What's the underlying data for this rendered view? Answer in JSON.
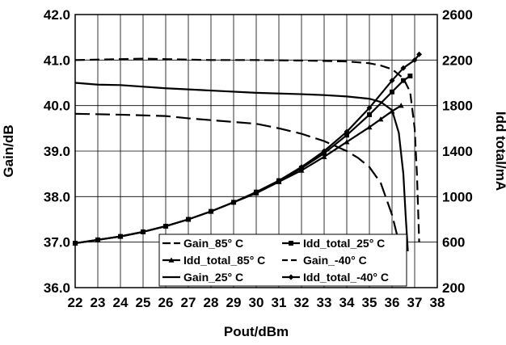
{
  "chart_data": {
    "type": "line",
    "title": "",
    "xlabel": "Pout/dBm",
    "ylabel_left": "Gain/dB",
    "ylabel_right": "Idd total/mA",
    "xlim": [
      22,
      38
    ],
    "ylim_left": [
      36.0,
      42.0
    ],
    "ylim_right": [
      200,
      2600
    ],
    "x_ticks": [
      "22",
      "23",
      "24",
      "25",
      "26",
      "27",
      "28",
      "29",
      "30",
      "31",
      "32",
      "33",
      "34",
      "35",
      "36",
      "37",
      "38"
    ],
    "y_left_ticks": [
      "36.0",
      "37.0",
      "38.0",
      "39.0",
      "40.0",
      "41.0",
      "42.0"
    ],
    "y_right_ticks": [
      "200",
      "600",
      "1000",
      "1400",
      "1800",
      "2200",
      "2600"
    ],
    "grid": true,
    "legend_position": "bottom-center",
    "legend": [
      "Gain_85° C",
      "Idd_total_25° C",
      "Idd_total_85° C",
      "Gain_-40° C",
      "Gain_25° C",
      "Idd_total_-40° C"
    ],
    "series": [
      {
        "name": "Gain_85° C",
        "axis": "left",
        "style": "long-dash",
        "x": [
          22,
          24,
          26,
          27,
          28,
          30,
          31,
          32,
          33,
          34,
          34.5,
          35,
          35.5,
          36,
          36.2,
          36.4,
          36.5
        ],
        "y": [
          39.82,
          39.8,
          39.77,
          39.72,
          39.68,
          39.6,
          39.5,
          39.38,
          39.22,
          39.0,
          38.85,
          38.65,
          38.3,
          37.6,
          37.2,
          36.9,
          36.5
        ]
      },
      {
        "name": "Gain_-40° C",
        "axis": "left",
        "style": "dash",
        "x": [
          22,
          24,
          25,
          26,
          28,
          30,
          32,
          34,
          35,
          35.5,
          36,
          36.5,
          36.8,
          37.0,
          37.1,
          37.2
        ],
        "y": [
          41.0,
          41.02,
          41.03,
          41.02,
          41.0,
          41.0,
          40.99,
          40.97,
          40.93,
          40.88,
          40.8,
          40.6,
          40.3,
          39.5,
          38.5,
          37.0
        ]
      },
      {
        "name": "Gain_25° C",
        "axis": "left",
        "style": "solid",
        "x": [
          22,
          23,
          24,
          26,
          28,
          30,
          32,
          33,
          34,
          35,
          35.5,
          36,
          36.3,
          36.5,
          36.6,
          36.7
        ],
        "y": [
          40.5,
          40.46,
          40.45,
          40.38,
          40.33,
          40.28,
          40.25,
          40.23,
          40.2,
          40.15,
          40.08,
          39.9,
          39.4,
          38.5,
          37.6,
          36.8
        ]
      },
      {
        "name": "Idd_total_85° C",
        "axis": "right",
        "marker": "triangle",
        "x": [
          22,
          23,
          24,
          25,
          26,
          27,
          28,
          29,
          30,
          31,
          32,
          33,
          34,
          35,
          35.5,
          36,
          36.4
        ],
        "y": [
          590,
          620,
          650,
          690,
          740,
          800,
          870,
          950,
          1030,
          1130,
          1230,
          1350,
          1480,
          1610,
          1680,
          1750,
          1800
        ]
      },
      {
        "name": "Idd_total_25° C",
        "axis": "right",
        "marker": "square",
        "x": [
          22,
          23,
          24,
          25,
          26,
          27,
          28,
          29,
          30,
          31,
          32,
          33,
          34,
          35,
          36,
          36.5,
          36.8
        ],
        "y": [
          590,
          620,
          650,
          690,
          740,
          800,
          870,
          950,
          1040,
          1140,
          1250,
          1380,
          1540,
          1720,
          1920,
          2020,
          2060
        ]
      },
      {
        "name": "Idd_total_-40° C",
        "axis": "right",
        "marker": "diamond",
        "x": [
          22,
          23,
          24,
          25,
          26,
          27,
          28,
          29,
          30,
          31,
          32,
          33,
          34,
          35,
          36,
          36.5,
          37.0,
          37.2
        ],
        "y": [
          590,
          620,
          650,
          690,
          740,
          800,
          870,
          950,
          1040,
          1140,
          1260,
          1400,
          1570,
          1780,
          2020,
          2130,
          2200,
          2250
        ]
      }
    ]
  }
}
